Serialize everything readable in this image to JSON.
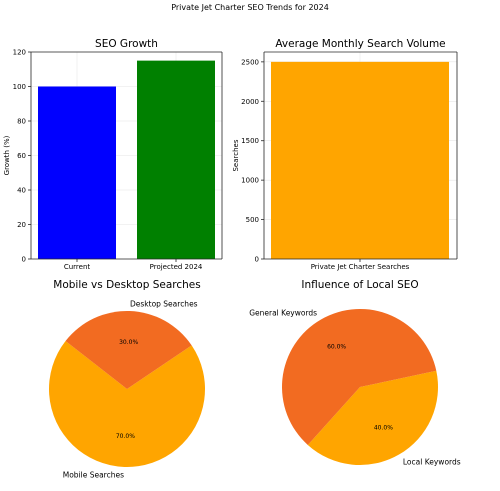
{
  "figure_title": "Private Jet Charter SEO Trends for 2024",
  "colors": {
    "grid": "#e6e6e6",
    "axis": "#262626",
    "text": "#262626"
  },
  "chart_data": [
    {
      "id": "seo_growth",
      "type": "bar",
      "title": "SEO Growth",
      "xlabel": "",
      "ylabel": "Growth (%)",
      "categories": [
        "Current",
        "Projected 2024"
      ],
      "values": [
        100,
        115
      ],
      "colors": [
        "#0000ff",
        "#008000"
      ],
      "ylim": [
        0,
        120
      ],
      "yticks": [
        0,
        20,
        40,
        60,
        80,
        100,
        120
      ],
      "grid": true
    },
    {
      "id": "search_volume",
      "type": "bar",
      "title": "Average Monthly Search Volume",
      "xlabel": "",
      "ylabel": "Searches",
      "categories": [
        "Private Jet Charter Searches"
      ],
      "values": [
        2500
      ],
      "colors": [
        "#ffa500"
      ],
      "ylim": [
        0,
        2625
      ],
      "yticks": [
        0,
        500,
        1000,
        1500,
        2000,
        2500
      ],
      "grid": true
    },
    {
      "id": "mobile_desktop",
      "type": "pie",
      "title": "Mobile vs Desktop Searches",
      "slices": [
        {
          "label": "Mobile Searches",
          "value": 70,
          "pct": "70.0%",
          "color": "#ffa500"
        },
        {
          "label": "Desktop Searches",
          "value": 30,
          "pct": "30.0%",
          "color": "#f26b21"
        }
      ]
    },
    {
      "id": "local_seo",
      "type": "pie",
      "title": "Influence of Local SEO",
      "slices": [
        {
          "label": "Local Keywords",
          "value": 40,
          "pct": "40.0%",
          "color": "#ffa500"
        },
        {
          "label": "General Keywords",
          "value": 60,
          "pct": "60.0%",
          "color": "#f26b21"
        }
      ]
    }
  ]
}
